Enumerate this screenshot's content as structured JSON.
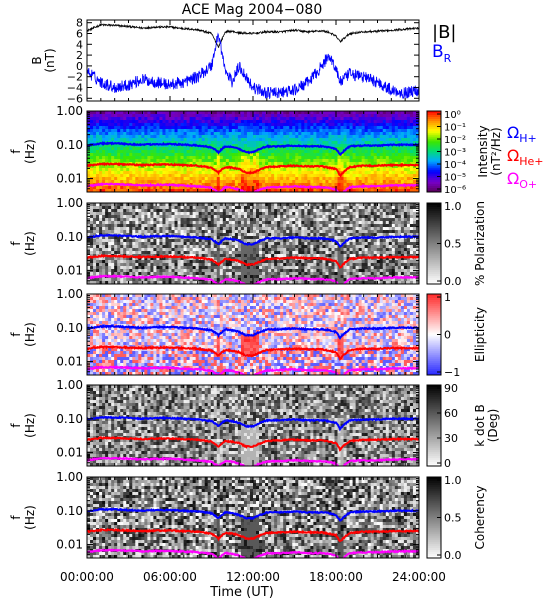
{
  "title": "ACE Mag 2004−080",
  "xlabel": "Time (UT)",
  "xticks": [
    "00:00:00",
    "06:00:00",
    "12:00:00",
    "18:00:00",
    "24:00:00"
  ],
  "x_range_hours": [
    0,
    24
  ],
  "colors": {
    "B": "#000000",
    "BR": "#0000ff",
    "H": "#0000ff",
    "He": "#ff0000",
    "O": "#ff00ff"
  },
  "chart_data": [
    {
      "type": "line",
      "ylabel": "B",
      "yunit": "(nT)",
      "ylim": [
        -6.5,
        8.5
      ],
      "yticks": [
        8,
        6,
        4,
        2,
        0,
        -2,
        -4,
        -6
      ],
      "legend": [
        "|B|",
        "B_R"
      ],
      "series": [
        {
          "name": "|B|",
          "x": [
            0,
            1,
            2,
            3,
            4,
            5,
            6,
            7,
            8,
            9,
            9.5,
            10,
            10.5,
            11,
            12,
            13,
            14,
            15,
            16,
            17,
            17.5,
            18,
            18.3,
            19,
            20,
            21,
            22,
            23,
            24
          ],
          "y": [
            6.5,
            7.6,
            7.5,
            7.3,
            7.0,
            7.2,
            7.2,
            6.9,
            6.7,
            6.0,
            3.5,
            6.3,
            6.4,
            6.1,
            6.0,
            6.3,
            6.3,
            6.6,
            6.3,
            6.5,
            6.2,
            5.5,
            4.5,
            6.0,
            6.3,
            6.4,
            6.6,
            6.8,
            7.0
          ]
        },
        {
          "name": "B_R",
          "x": [
            0,
            1,
            2,
            3,
            4,
            5,
            6,
            7,
            8,
            9,
            9.5,
            10,
            10.5,
            11,
            11.5,
            12,
            13,
            14,
            15,
            16,
            17,
            17.5,
            18,
            18.3,
            19,
            20,
            21,
            22,
            23,
            24
          ],
          "y": [
            -1,
            -3,
            -4,
            -3.5,
            -2.5,
            -3,
            -3.5,
            -3,
            -2,
            0,
            6,
            -1,
            -3,
            0,
            -2,
            -4,
            -5,
            -5,
            -4.5,
            -3,
            0,
            2,
            -0.5,
            -3,
            -1.5,
            -2,
            -3,
            -4.5,
            -5,
            -4.5
          ]
        }
      ]
    },
    {
      "type": "heatmap",
      "quantity": "intensity",
      "ylabel": "f",
      "yunit": "(Hz)",
      "yscale": "log",
      "ylim": [
        0.004,
        1.0
      ],
      "yticks": [
        "1.00",
        "0.10",
        "0.01"
      ],
      "colorbar": {
        "label": "Intensity",
        "unit": "(nT²/Hz)",
        "ticks": [
          "10⁰",
          "10⁻¹",
          "10⁻²",
          "10⁻³",
          "10⁻⁴",
          "10⁻⁵",
          "10⁻⁶"
        ]
      },
      "legend": [
        "ΩH+",
        "ΩHe+",
        "ΩO+"
      ]
    },
    {
      "type": "heatmap",
      "quantity": "polarization",
      "ylabel": "f",
      "yunit": "(Hz)",
      "yscale": "log",
      "ylim": [
        0.004,
        1.0
      ],
      "yticks": [
        "1.00",
        "0.10",
        "0.01"
      ],
      "colorbar": {
        "label": "% Polarization",
        "ticks": [
          "1.0",
          "0.5",
          "0.0"
        ]
      }
    },
    {
      "type": "heatmap",
      "quantity": "ellipticity",
      "ylabel": "f",
      "yunit": "(Hz)",
      "yscale": "log",
      "ylim": [
        0.004,
        1.0
      ],
      "yticks": [
        "1.00",
        "0.10",
        "0.01"
      ],
      "colorbar": {
        "label": "Ellipticity",
        "ticks": [
          "1",
          "0",
          "−1"
        ]
      }
    },
    {
      "type": "heatmap",
      "quantity": "kdotb",
      "ylabel": "f",
      "yunit": "(Hz)",
      "yscale": "log",
      "ylim": [
        0.004,
        1.0
      ],
      "yticks": [
        "1.00",
        "0.10",
        "0.01"
      ],
      "colorbar": {
        "label": "k dot B",
        "unit": "(Deg)",
        "ticks": [
          "90",
          "60",
          "30",
          "0"
        ]
      }
    },
    {
      "type": "heatmap",
      "quantity": "coherency",
      "ylabel": "f",
      "yunit": "(Hz)",
      "yscale": "log",
      "ylim": [
        0.004,
        1.0
      ],
      "yticks": [
        "1.00",
        "0.10",
        "0.01"
      ],
      "colorbar": {
        "label": "Coherency",
        "ticks": [
          "1.0",
          "0.5",
          "0.0"
        ]
      }
    }
  ],
  "gyrofrequency_lines": {
    "x": [
      0,
      1,
      2,
      3,
      4,
      5,
      6,
      7,
      8,
      9,
      9.5,
      10,
      10.5,
      11,
      11.5,
      12,
      13,
      14,
      15,
      16,
      17,
      17.5,
      18,
      18.3,
      19,
      20,
      21,
      22,
      23,
      24
    ],
    "H": [
      0.095,
      0.11,
      0.11,
      0.105,
      0.1,
      0.105,
      0.105,
      0.1,
      0.095,
      0.085,
      0.06,
      0.09,
      0.085,
      0.075,
      0.06,
      0.06,
      0.09,
      0.09,
      0.095,
      0.09,
      0.09,
      0.085,
      0.075,
      0.05,
      0.09,
      0.095,
      0.095,
      0.1,
      0.1,
      0.1
    ],
    "He": [
      0.024,
      0.027,
      0.027,
      0.026,
      0.025,
      0.026,
      0.026,
      0.025,
      0.024,
      0.021,
      0.015,
      0.022,
      0.021,
      0.019,
      0.015,
      0.015,
      0.022,
      0.023,
      0.024,
      0.023,
      0.023,
      0.021,
      0.019,
      0.012,
      0.022,
      0.024,
      0.024,
      0.025,
      0.025,
      0.025
    ],
    "O": [
      0.0059,
      0.0068,
      0.0068,
      0.0066,
      0.0063,
      0.0065,
      0.0065,
      0.0062,
      0.0059,
      0.0053,
      0.0038,
      0.0056,
      0.0053,
      0.0047,
      0.0038,
      0.0038,
      0.0055,
      0.0056,
      0.0059,
      0.0056,
      0.0056,
      0.0053,
      0.0047,
      0.0031,
      0.0056,
      0.0059,
      0.0059,
      0.0062,
      0.0063,
      0.0063
    ]
  }
}
